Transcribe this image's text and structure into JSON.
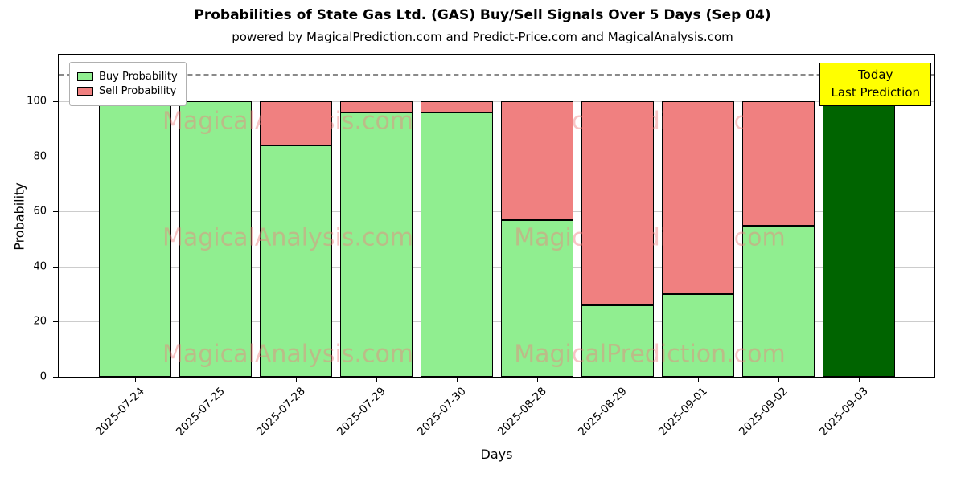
{
  "title": "Probabilities of State Gas Ltd. (GAS) Buy/Sell Signals Over 5 Days (Sep 04)",
  "subtitle": "powered by MagicalPrediction.com and Predict-Price.com and MagicalAnalysis.com",
  "xlabel": "Days",
  "ylabel": "Probability",
  "legend": {
    "buy_label": "Buy Probability",
    "sell_label": "Sell Probability"
  },
  "annotation": {
    "line1": "Today",
    "line2": "Last Prediction",
    "bg_color": "#ffff00"
  },
  "watermarks": [
    "MagicalAnalysis.com",
    "MagicalPrediction.com"
  ],
  "chart_data": {
    "type": "bar",
    "stacked": true,
    "categories": [
      "2025-07-24",
      "2025-07-25",
      "2025-07-28",
      "2025-07-29",
      "2025-07-30",
      "2025-08-28",
      "2025-08-29",
      "2025-09-01",
      "2025-09-02",
      "2025-09-03"
    ],
    "series": [
      {
        "name": "Buy Probability",
        "color": "#90ee90",
        "values": [
          100,
          100,
          84,
          96,
          96,
          57,
          26,
          30,
          55,
          100
        ]
      },
      {
        "name": "Sell Probability",
        "color": "#f08080",
        "values": [
          0,
          0,
          16,
          4,
          4,
          43,
          74,
          70,
          45,
          0
        ]
      }
    ],
    "today_index": 9,
    "today_color": "#006400",
    "ylim": [
      0,
      117
    ],
    "yticks": [
      0,
      20,
      40,
      60,
      80,
      100
    ],
    "dashed_line_y": 110,
    "bar_width_units": 0.9,
    "edge_pad_units": 0.945,
    "grid": true,
    "legend_position": "upper left"
  }
}
